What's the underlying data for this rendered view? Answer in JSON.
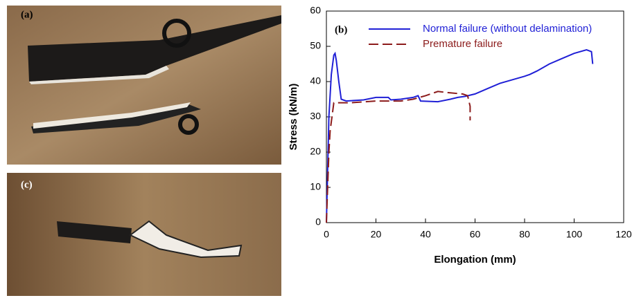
{
  "panels": {
    "a": "(a)",
    "c": "(c)"
  },
  "chart_data": {
    "type": "line",
    "annotation": "(b)",
    "x_label": "Elongation (mm)",
    "y_label": "Stress (kN/m)",
    "xlim": [
      0,
      120
    ],
    "ylim": [
      0,
      60
    ],
    "xticks": [
      0,
      20,
      40,
      60,
      80,
      100,
      120
    ],
    "yticks": [
      0,
      10,
      20,
      30,
      40,
      50,
      60
    ],
    "series": [
      {
        "name": "Normal failure (without delamination)",
        "color": "#1f1fd6",
        "dash": "solid",
        "x": [
          0,
          0.5,
          1,
          2,
          3,
          3.5,
          4,
          5,
          6,
          8,
          15,
          20,
          25,
          26,
          30,
          35,
          37,
          38,
          45,
          50,
          53,
          56,
          60,
          65,
          70,
          75,
          80,
          82,
          85,
          90,
          95,
          100,
          105,
          107,
          107.5
        ],
        "values": [
          0,
          15,
          30,
          42,
          47.5,
          48,
          46,
          40,
          35,
          34.5,
          34.8,
          35.5,
          35.5,
          34.8,
          35,
          35.5,
          36,
          34.5,
          34.3,
          35,
          35.5,
          35.8,
          36.5,
          38,
          39.5,
          40.5,
          41.5,
          42,
          43,
          45,
          46.5,
          48,
          49,
          48.5,
          45
        ]
      },
      {
        "name": "Premature failure",
        "color": "#8b1a1a",
        "dash": "dashed",
        "x": [
          0,
          0.5,
          1,
          1.5,
          3,
          10,
          20,
          30,
          35,
          40,
          45,
          50,
          55,
          57,
          58,
          58
        ],
        "values": [
          0,
          10,
          20,
          26,
          34,
          34,
          34.5,
          34.5,
          35,
          36,
          37.2,
          36.8,
          36.5,
          36,
          33,
          29
        ]
      }
    ]
  }
}
